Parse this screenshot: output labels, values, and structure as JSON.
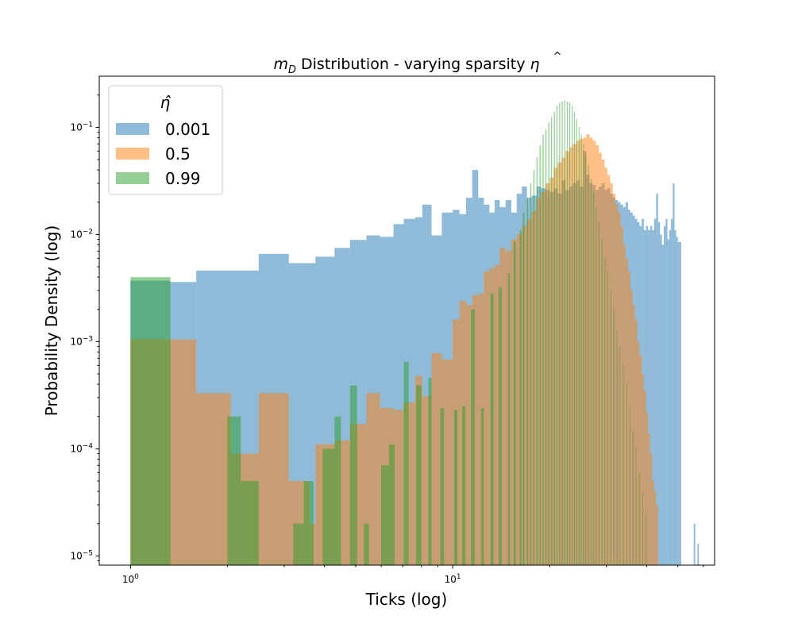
{
  "chart_data": {
    "type": "histogram",
    "title_main": "m",
    "title_sub": "D",
    "title_rest": " Distribution - varying sparsity ",
    "title_eta": "η",
    "title_hat": "^",
    "xlabel": "Ticks (log)",
    "ylabel": "Probability Density (log)",
    "xscale": "log",
    "yscale": "log",
    "xlim": [
      0.8,
      65
    ],
    "ylim": [
      8.2e-06,
      0.3
    ],
    "x_ticks": [
      {
        "value": 1,
        "base": "10",
        "exp": "0"
      },
      {
        "value": 10,
        "base": "10",
        "exp": "1"
      }
    ],
    "y_ticks": [
      {
        "value": 1e-05,
        "base": "10",
        "exp": "−5"
      },
      {
        "value": 0.0001,
        "base": "10",
        "exp": "−4"
      },
      {
        "value": 0.001,
        "base": "10",
        "exp": "−3"
      },
      {
        "value": 0.01,
        "base": "10",
        "exp": "−2"
      },
      {
        "value": 0.1,
        "base": "10",
        "exp": "−1"
      }
    ],
    "legend": {
      "title": "η̂",
      "placement": "upper left"
    },
    "series": [
      {
        "name": "0.001",
        "color": "#1f77b4",
        "opacity": 0.5,
        "bins": [
          [
            1.0,
            1.33,
            0.0037
          ],
          [
            1.33,
            1.6,
            0.0036
          ],
          [
            1.6,
            2.05,
            0.0046
          ],
          [
            2.05,
            2.5,
            0.0046
          ],
          [
            2.5,
            3.1,
            0.0066
          ],
          [
            3.1,
            3.6,
            0.0054
          ],
          [
            3.6,
            3.75,
            0.0054
          ],
          [
            3.75,
            4.3,
            0.0062
          ],
          [
            4.3,
            4.8,
            0.0075
          ],
          [
            4.8,
            5.4,
            0.0089
          ],
          [
            5.4,
            5.95,
            0.0098
          ],
          [
            5.95,
            6.55,
            0.0095
          ],
          [
            6.55,
            7.05,
            0.0125
          ],
          [
            7.05,
            7.65,
            0.014
          ],
          [
            7.65,
            8.05,
            0.0145
          ],
          [
            8.05,
            8.6,
            0.019
          ],
          [
            8.6,
            9.25,
            0.0098
          ],
          [
            9.25,
            10.0,
            0.016
          ],
          [
            10.0,
            10.5,
            0.017
          ],
          [
            10.5,
            11.0,
            0.0155
          ],
          [
            11.0,
            11.5,
            0.022
          ],
          [
            11.5,
            12.0,
            0.04
          ],
          [
            12.0,
            12.5,
            0.022
          ],
          [
            12.5,
            13.0,
            0.019
          ],
          [
            13.0,
            13.5,
            0.016
          ],
          [
            13.5,
            14.0,
            0.021
          ],
          [
            14.0,
            14.6,
            0.018
          ],
          [
            14.6,
            15.2,
            0.021
          ],
          [
            15.2,
            15.8,
            0.016
          ],
          [
            15.8,
            16.4,
            0.024
          ],
          [
            16.4,
            17.0,
            0.028
          ],
          [
            17.0,
            17.6,
            0.022
          ],
          [
            17.6,
            18.2,
            0.023
          ],
          [
            18.2,
            18.8,
            0.028
          ],
          [
            18.8,
            19.4,
            0.027
          ],
          [
            19.4,
            20.0,
            0.026
          ],
          [
            20.0,
            20.6,
            0.025
          ],
          [
            20.6,
            21.2,
            0.027
          ],
          [
            21.2,
            21.8,
            0.024
          ],
          [
            21.8,
            22.4,
            0.032
          ],
          [
            22.4,
            23.0,
            0.026
          ],
          [
            23.0,
            23.6,
            0.028
          ],
          [
            23.6,
            24.2,
            0.03
          ],
          [
            24.2,
            24.8,
            0.032
          ],
          [
            24.8,
            25.4,
            0.028
          ],
          [
            25.4,
            26.0,
            0.06
          ],
          [
            26.0,
            26.6,
            0.036
          ],
          [
            26.6,
            27.2,
            0.03
          ],
          [
            27.2,
            27.8,
            0.029
          ],
          [
            27.8,
            28.4,
            0.026
          ],
          [
            28.4,
            29.0,
            0.028
          ],
          [
            29.0,
            29.6,
            0.03
          ],
          [
            29.6,
            30.2,
            0.026
          ],
          [
            30.2,
            30.8,
            0.027
          ],
          [
            30.8,
            31.4,
            0.024
          ],
          [
            31.4,
            32.0,
            0.022
          ],
          [
            32.0,
            32.6,
            0.021
          ],
          [
            32.6,
            33.2,
            0.02
          ],
          [
            33.2,
            33.8,
            0.019
          ],
          [
            33.8,
            34.4,
            0.018
          ],
          [
            34.4,
            35.0,
            0.02
          ],
          [
            35.0,
            35.6,
            0.017
          ],
          [
            35.6,
            36.2,
            0.016
          ],
          [
            36.2,
            36.8,
            0.015
          ],
          [
            36.8,
            37.4,
            0.014
          ],
          [
            37.4,
            38.0,
            0.013
          ],
          [
            38.0,
            38.6,
            0.012
          ],
          [
            38.6,
            39.2,
            0.014
          ],
          [
            39.2,
            39.8,
            0.011
          ],
          [
            39.8,
            40.4,
            0.012
          ],
          [
            40.4,
            41.0,
            0.011
          ],
          [
            41.0,
            41.6,
            0.012
          ],
          [
            41.6,
            42.2,
            0.011
          ],
          [
            42.2,
            42.8,
            0.014
          ],
          [
            42.8,
            43.4,
            0.024
          ],
          [
            43.4,
            44.0,
            0.013
          ],
          [
            44.0,
            44.6,
            0.01
          ],
          [
            44.6,
            45.2,
            0.008
          ],
          [
            45.2,
            45.8,
            0.012
          ],
          [
            45.8,
            46.4,
            0.014
          ],
          [
            46.4,
            47.0,
            0.009
          ],
          [
            47.0,
            47.6,
            0.011
          ],
          [
            47.6,
            48.2,
            0.014
          ],
          [
            48.2,
            48.8,
            0.03
          ],
          [
            48.8,
            49.4,
            0.011
          ],
          [
            49.4,
            50.0,
            0.0095
          ],
          [
            50.0,
            50.6,
            0.0085
          ],
          [
            50.6,
            51.2,
            0.0085
          ],
          [
            56.0,
            56.6,
            2e-05
          ],
          [
            57.5,
            58.1,
            1.3e-05
          ]
        ]
      },
      {
        "name": "0.5",
        "color": "#ff7f0e",
        "opacity": 0.5,
        "bins": [
          [
            1.0,
            1.33,
            0.00105
          ],
          [
            1.33,
            1.6,
            0.00105
          ],
          [
            1.6,
            2.05,
            0.00033
          ],
          [
            2.05,
            2.5,
            9e-05
          ],
          [
            2.5,
            3.1,
            0.00033
          ],
          [
            3.1,
            3.6,
            5e-05
          ],
          [
            3.6,
            3.75,
            2e-05
          ],
          [
            3.75,
            4.3,
            0.00011
          ],
          [
            4.3,
            4.8,
            0.00012
          ],
          [
            4.8,
            5.4,
            0.00017
          ],
          [
            5.4,
            5.95,
            0.00033
          ],
          [
            5.95,
            6.55,
            0.00024
          ],
          [
            6.55,
            7.05,
            0.00023
          ],
          [
            7.05,
            7.65,
            0.00027
          ],
          [
            7.65,
            8.05,
            0.00048
          ],
          [
            8.05,
            8.6,
            0.00031
          ],
          [
            8.6,
            9.25,
            0.00078
          ],
          [
            9.25,
            10.0,
            0.00068
          ],
          [
            10.0,
            10.5,
            0.0016
          ],
          [
            10.5,
            11.0,
            0.0024
          ],
          [
            11.0,
            11.5,
            0.0022
          ],
          [
            11.5,
            12.0,
            0.0027
          ],
          [
            12.0,
            12.5,
            0.0028
          ],
          [
            12.5,
            13.0,
            0.0045
          ],
          [
            13.0,
            13.5,
            0.0048
          ],
          [
            13.5,
            14.0,
            0.0052
          ],
          [
            14.0,
            14.6,
            0.0075
          ],
          [
            14.6,
            15.2,
            0.007
          ],
          [
            15.2,
            15.8,
            0.009
          ],
          [
            15.8,
            16.4,
            0.01
          ],
          [
            16.4,
            17.0,
            0.012
          ],
          [
            17.0,
            17.6,
            0.014
          ],
          [
            17.6,
            18.2,
            0.0165
          ],
          [
            18.2,
            18.8,
            0.022
          ],
          [
            18.8,
            19.4,
            0.025
          ],
          [
            19.4,
            20.0,
            0.03
          ],
          [
            20.0,
            20.6,
            0.034
          ],
          [
            20.6,
            21.2,
            0.042
          ],
          [
            21.2,
            21.8,
            0.047
          ],
          [
            21.8,
            22.4,
            0.052
          ],
          [
            22.4,
            23.0,
            0.06
          ],
          [
            23.0,
            23.6,
            0.065
          ],
          [
            23.6,
            24.2,
            0.07
          ],
          [
            24.2,
            24.8,
            0.075
          ],
          [
            24.8,
            25.4,
            0.078
          ],
          [
            25.4,
            26.0,
            0.08
          ],
          [
            26.0,
            26.6,
            0.086
          ],
          [
            26.6,
            27.2,
            0.08
          ],
          [
            27.2,
            27.8,
            0.075
          ],
          [
            27.8,
            28.4,
            0.068
          ],
          [
            28.4,
            29.0,
            0.058
          ],
          [
            29.0,
            29.6,
            0.05
          ],
          [
            29.6,
            30.2,
            0.042
          ],
          [
            30.2,
            30.8,
            0.036
          ],
          [
            30.8,
            31.4,
            0.03
          ],
          [
            31.4,
            32.0,
            0.024
          ],
          [
            32.0,
            32.6,
            0.019
          ],
          [
            32.6,
            33.2,
            0.016
          ],
          [
            33.2,
            33.8,
            0.012
          ],
          [
            33.8,
            34.4,
            0.008
          ],
          [
            34.4,
            35.0,
            0.006
          ],
          [
            35.0,
            35.6,
            0.0045
          ],
          [
            35.6,
            36.2,
            0.003
          ],
          [
            36.2,
            36.8,
            0.0022
          ],
          [
            36.8,
            37.4,
            0.0016
          ],
          [
            37.4,
            38.0,
            0.001
          ],
          [
            38.0,
            38.6,
            0.00075
          ],
          [
            38.6,
            39.2,
            0.0005
          ],
          [
            39.2,
            39.8,
            0.00035
          ],
          [
            39.8,
            40.4,
            0.00022
          ],
          [
            40.4,
            41.0,
            0.00014
          ],
          [
            41.0,
            41.6,
            9e-05
          ],
          [
            41.6,
            42.2,
            5e-05
          ],
          [
            42.2,
            42.8,
            4e-05
          ],
          [
            42.8,
            43.4,
            3e-05
          ]
        ]
      },
      {
        "name": "0.99",
        "color": "#2ca02c",
        "opacity": 0.5,
        "bins": [
          [
            1.0,
            1.33,
            0.004
          ],
          [
            2.0,
            2.2,
            0.0002
          ],
          [
            2.2,
            2.5,
            5e-05
          ],
          [
            3.2,
            3.45,
            2e-05
          ],
          [
            3.45,
            3.7,
            5e-05
          ],
          [
            3.95,
            4.3,
            0.0001
          ],
          [
            4.3,
            4.5,
            0.0002
          ],
          [
            4.8,
            5.05,
            0.00039
          ],
          [
            5.3,
            5.5,
            2e-05
          ],
          [
            6.0,
            6.35,
            7e-05
          ],
          [
            6.35,
            6.6,
            0.00011
          ],
          [
            7.05,
            7.3,
            0.00065
          ],
          [
            7.7,
            8.0,
            0.00039
          ],
          [
            8.4,
            8.6,
            0.00046
          ],
          [
            9.15,
            9.4,
            0.00024
          ],
          [
            10.1,
            10.35,
            0.00023
          ],
          [
            10.7,
            10.95,
            0.00025
          ],
          [
            11.4,
            11.7,
            0.002
          ],
          [
            12.25,
            12.5,
            0.00024
          ],
          [
            13.1,
            13.4,
            0.0028
          ],
          [
            13.9,
            14.2,
            0.0032
          ],
          [
            14.85,
            15.05,
            0.0044
          ],
          [
            15.45,
            15.7,
            0.0085
          ],
          [
            16.15,
            16.35,
            0.011
          ],
          [
            16.5,
            16.7,
            0.016
          ],
          [
            17.0,
            17.15,
            0.022
          ],
          [
            17.4,
            17.55,
            0.03
          ],
          [
            17.8,
            17.95,
            0.04
          ],
          [
            18.2,
            18.35,
            0.052
          ],
          [
            18.6,
            18.75,
            0.068
          ],
          [
            19.0,
            19.15,
            0.085
          ],
          [
            19.4,
            19.55,
            0.095
          ],
          [
            19.8,
            19.95,
            0.11
          ],
          [
            20.2,
            20.35,
            0.125
          ],
          [
            20.6,
            20.75,
            0.14
          ],
          [
            21.0,
            21.15,
            0.16
          ],
          [
            21.4,
            21.55,
            0.17
          ],
          [
            21.8,
            21.95,
            0.175
          ],
          [
            22.2,
            22.35,
            0.18
          ],
          [
            22.6,
            22.75,
            0.175
          ],
          [
            23.0,
            23.15,
            0.17
          ],
          [
            23.4,
            23.55,
            0.16
          ],
          [
            23.8,
            23.95,
            0.14
          ],
          [
            24.2,
            24.35,
            0.12
          ],
          [
            24.6,
            24.75,
            0.1
          ],
          [
            25.0,
            25.15,
            0.085
          ],
          [
            25.4,
            25.55,
            0.07
          ],
          [
            25.8,
            25.95,
            0.055
          ],
          [
            26.3,
            26.45,
            0.045
          ],
          [
            26.8,
            26.95,
            0.033
          ],
          [
            27.3,
            27.45,
            0.025
          ],
          [
            27.8,
            27.95,
            0.018
          ],
          [
            28.4,
            28.55,
            0.013
          ],
          [
            29.0,
            29.15,
            0.009
          ],
          [
            29.6,
            29.75,
            0.006
          ],
          [
            30.2,
            30.35,
            0.0045
          ],
          [
            30.9,
            31.05,
            0.003
          ],
          [
            31.6,
            31.75,
            0.002
          ],
          [
            32.3,
            32.45,
            0.0013
          ],
          [
            33.0,
            33.15,
            0.0009
          ],
          [
            33.8,
            33.95,
            0.0006
          ],
          [
            34.6,
            34.75,
            0.0004
          ],
          [
            35.4,
            35.55,
            0.00025
          ],
          [
            36.2,
            36.35,
            0.00015
          ],
          [
            37.0,
            37.15,
            0.0001
          ],
          [
            37.9,
            38.05,
            6e-05
          ],
          [
            38.8,
            38.95,
            4e-05
          ],
          [
            39.7,
            39.85,
            2.5e-05
          ]
        ]
      }
    ]
  }
}
